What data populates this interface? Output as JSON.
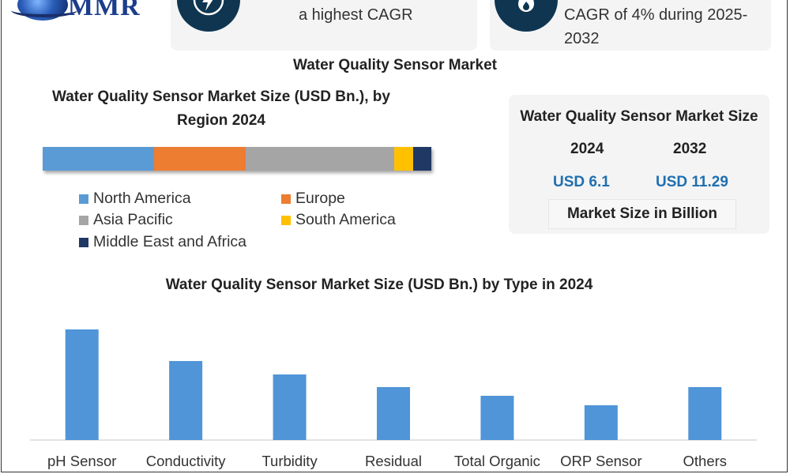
{
  "logo": {
    "text": "MMR"
  },
  "cards": [
    {
      "text": "a highest CAGR",
      "icon": "lightning-bolt-icon"
    },
    {
      "text": "CAGR of 4% during 2025-2032",
      "icon": "flame-icon"
    }
  ],
  "main_title": "Water Quality Sensor Market",
  "info_card": {
    "title": "Water Quality Sensor Market Size",
    "year_1": "2024",
    "year_2": "2032",
    "value_1": "USD 6.1",
    "value_2": "USD 11.29",
    "caption": "Market Size in Billion",
    "value_color": "#1f6fb0"
  },
  "chart_data": [
    {
      "type": "bar",
      "title": "Water Quality Sensor Market Size (USD Bn.), by Region 2024",
      "orientation": "horizontal-stacked",
      "categories": [
        "North America",
        "Europe",
        "Asia Pacific",
        "South America",
        "Middle East and Africa"
      ],
      "values": [
        28.5,
        23.5,
        38,
        4.8,
        4.7
      ],
      "colors": [
        "#5b9bd5",
        "#ed7d31",
        "#a5a5a5",
        "#ffc000",
        "#1f3864"
      ],
      "legend_position": "bottom"
    },
    {
      "type": "bar",
      "title": "Water Quality Sensor Market Size (USD Bn.)  by Type in 2024",
      "categories": [
        "pH Sensor",
        "Conductivity",
        "Turbidity",
        "Residual",
        "Total Organic",
        "ORP Sensor",
        "Others"
      ],
      "values": [
        1.4,
        1.0,
        0.83,
        0.67,
        0.56,
        0.44,
        0.67
      ],
      "color": "#4f95d8",
      "ylim": [
        0,
        1.4
      ],
      "grid": false
    }
  ]
}
